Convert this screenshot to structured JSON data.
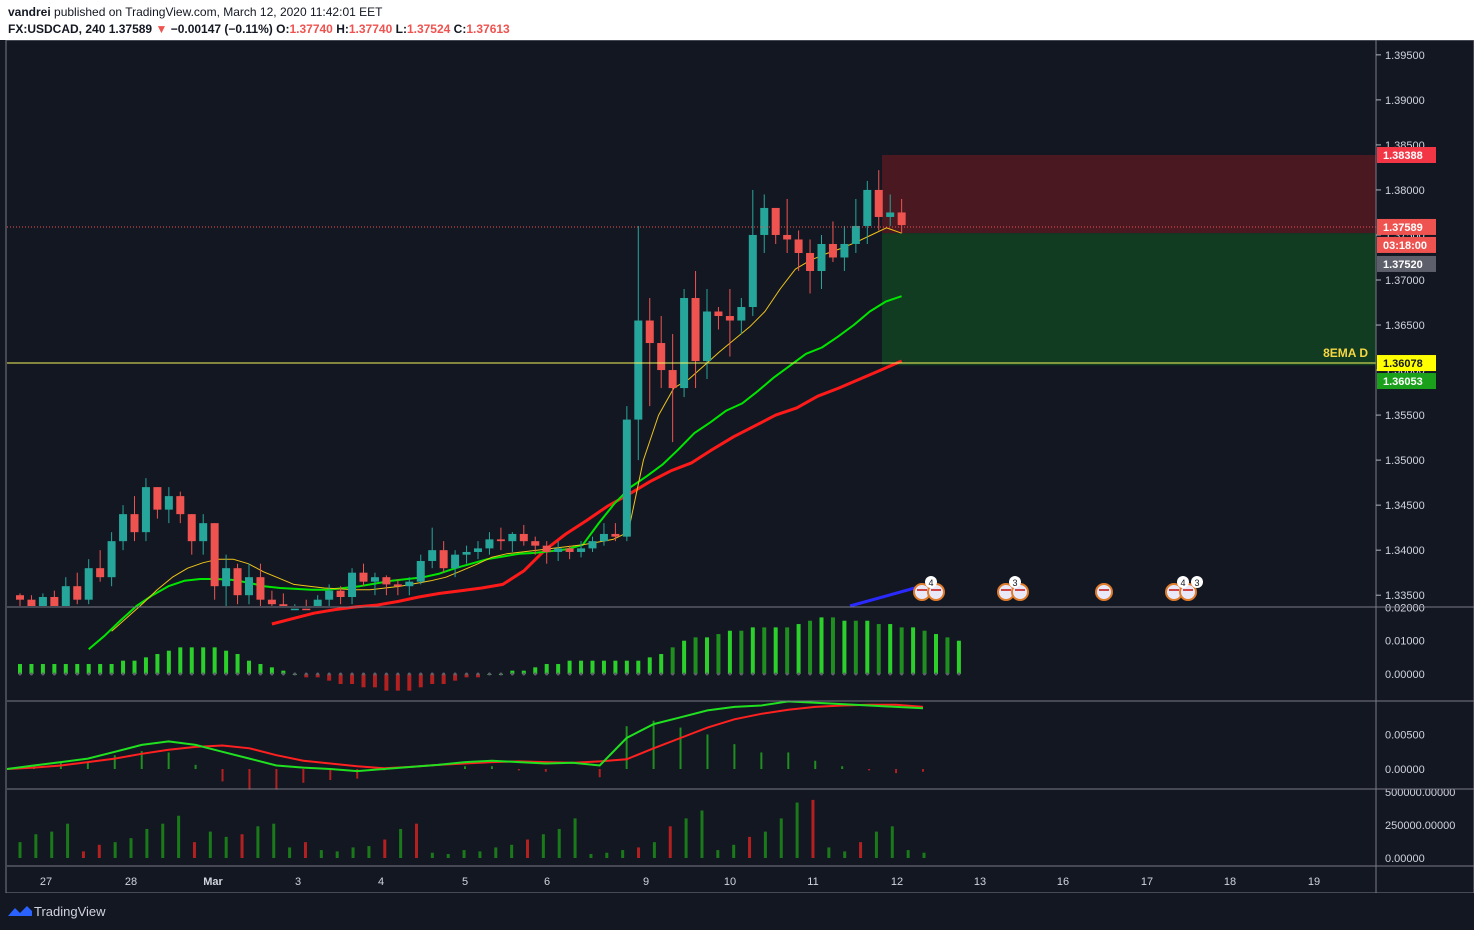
{
  "header": {
    "author": "vandrei",
    "published_text": "published on TradingView.com, March 12, 2020 11:42:01 EET",
    "symbol": "FX:USDCAD",
    "interval": "240",
    "last": "1.37589",
    "change": "−0.00147 (−0.11%)",
    "o_label": "O:",
    "o": "1.37740",
    "h_label": "H:",
    "h": "1.37740",
    "l_label": "L:",
    "l": "1.37524",
    "c_label": "C:",
    "c": "1.37613"
  },
  "colors": {
    "bg": "#131722",
    "up": "#26a69a",
    "down": "#ef5350",
    "ema_fast": "#f0c419",
    "ema_mid": "#00e600",
    "ema_slow": "#ff1a1a",
    "blue_line": "#2a2aff",
    "stop_zone": "#4a1820",
    "target_zone": "#123c22"
  },
  "price_axis": {
    "ticks": [
      "1.39500",
      "1.39000",
      "1.38500",
      "1.38000",
      "1.37500",
      "1.37000",
      "1.36500",
      "1.36000",
      "1.35500",
      "1.35000",
      "1.34500",
      "1.34000",
      "1.33500"
    ],
    "ylim": [
      1.3338,
      1.39665
    ]
  },
  "price_labels": {
    "stop": "1.38388",
    "last": "1.37589",
    "countdown": "03:18:00",
    "entry": "1.37520",
    "ema_daily": "1.36078",
    "target": "1.36053"
  },
  "annotation": "8EMA D",
  "event_badges": [
    "4",
    "3",
    "4",
    "3"
  ],
  "osc1": {
    "ticks": [
      "0.02000",
      "0.01000",
      "0.00000"
    ]
  },
  "osc2": {
    "ticks": [
      "0.00500",
      "0.00000"
    ]
  },
  "volume": {
    "ticks": [
      "500000.00000",
      "250000.00000",
      "0.00000"
    ]
  },
  "time_axis": [
    "27",
    "28",
    "Mar",
    "3",
    "4",
    "5",
    "6",
    "9",
    "10",
    "11",
    "12",
    "13",
    "16",
    "17",
    "18",
    "19"
  ],
  "footer": {
    "brand": "TradingView"
  },
  "chart_data": {
    "type": "candlestick",
    "symbol": "FX:USDCAD",
    "interval": "240",
    "ylim": [
      1.3338,
      1.39665
    ],
    "trade_setup": {
      "stop": 1.38388,
      "entry": 1.3752,
      "target": 1.36053,
      "ema_daily": 1.36078
    },
    "candles": [
      [
        1.335,
        1.3352,
        1.3335,
        1.3345
      ],
      [
        1.3345,
        1.335,
        1.3334,
        1.3338
      ],
      [
        1.3338,
        1.3352,
        1.3334,
        1.3348
      ],
      [
        1.3348,
        1.3355,
        1.333,
        1.3338
      ],
      [
        1.3338,
        1.337,
        1.3332,
        1.336
      ],
      [
        1.336,
        1.3375,
        1.334,
        1.3345
      ],
      [
        1.3345,
        1.339,
        1.334,
        1.338
      ],
      [
        1.338,
        1.34,
        1.3365,
        1.337
      ],
      [
        1.337,
        1.342,
        1.336,
        1.341
      ],
      [
        1.341,
        1.345,
        1.34,
        1.344
      ],
      [
        1.344,
        1.346,
        1.341,
        1.342
      ],
      [
        1.342,
        1.348,
        1.341,
        1.347
      ],
      [
        1.347,
        1.347,
        1.3435,
        1.3445
      ],
      [
        1.3445,
        1.347,
        1.343,
        1.346
      ],
      [
        1.346,
        1.3465,
        1.343,
        1.344
      ],
      [
        1.344,
        1.344,
        1.3395,
        1.341
      ],
      [
        1.341,
        1.344,
        1.3395,
        1.343
      ],
      [
        1.343,
        1.343,
        1.3345,
        1.336
      ],
      [
        1.336,
        1.3395,
        1.332,
        1.338
      ],
      [
        1.338,
        1.3385,
        1.334,
        1.335
      ],
      [
        1.335,
        1.3385,
        1.334,
        1.337
      ],
      [
        1.337,
        1.3385,
        1.333,
        1.3345
      ],
      [
        1.3345,
        1.3355,
        1.333,
        1.334
      ],
      [
        1.334,
        1.3352,
        1.3325,
        1.333
      ],
      [
        1.333,
        1.334,
        1.332,
        1.3335
      ],
      [
        1.3335,
        1.3345,
        1.3315,
        1.3325
      ],
      [
        1.3325,
        1.335,
        1.332,
        1.3345
      ],
      [
        1.3345,
        1.3362,
        1.333,
        1.3355
      ],
      [
        1.3355,
        1.336,
        1.334,
        1.3348
      ],
      [
        1.3348,
        1.338,
        1.334,
        1.3375
      ],
      [
        1.3375,
        1.3385,
        1.336,
        1.3365
      ],
      [
        1.3365,
        1.3375,
        1.335,
        1.337
      ],
      [
        1.337,
        1.3372,
        1.335,
        1.3362
      ],
      [
        1.3362,
        1.3368,
        1.335,
        1.336
      ],
      [
        1.336,
        1.337,
        1.335,
        1.3365
      ],
      [
        1.3365,
        1.3395,
        1.3362,
        1.3388
      ],
      [
        1.3388,
        1.3425,
        1.338,
        1.34
      ],
      [
        1.34,
        1.341,
        1.3375,
        1.338
      ],
      [
        1.338,
        1.34,
        1.337,
        1.3395
      ],
      [
        1.3395,
        1.3405,
        1.3385,
        1.3398
      ],
      [
        1.3398,
        1.341,
        1.339,
        1.3402
      ],
      [
        1.3402,
        1.342,
        1.3395,
        1.3412
      ],
      [
        1.3412,
        1.3425,
        1.34,
        1.341
      ],
      [
        1.341,
        1.342,
        1.3398,
        1.3418
      ],
      [
        1.3418,
        1.3428,
        1.3405,
        1.341
      ],
      [
        1.341,
        1.3415,
        1.3395,
        1.3405
      ],
      [
        1.3405,
        1.341,
        1.3385,
        1.3398
      ],
      [
        1.3398,
        1.341,
        1.3388,
        1.3402
      ],
      [
        1.3402,
        1.3405,
        1.339,
        1.3398
      ],
      [
        1.3398,
        1.341,
        1.3392,
        1.3402
      ],
      [
        1.3402,
        1.3415,
        1.3398,
        1.341
      ],
      [
        1.341,
        1.343,
        1.3405,
        1.3418
      ],
      [
        1.3418,
        1.343,
        1.341,
        1.3415
      ],
      [
        1.3415,
        1.356,
        1.341,
        1.3545
      ],
      [
        1.3545,
        1.376,
        1.35,
        1.3655
      ],
      [
        1.3655,
        1.368,
        1.356,
        1.363
      ],
      [
        1.363,
        1.366,
        1.358,
        1.36
      ],
      [
        1.36,
        1.364,
        1.352,
        1.358
      ],
      [
        1.358,
        1.369,
        1.357,
        1.368
      ],
      [
        1.368,
        1.371,
        1.358,
        1.361
      ],
      [
        1.361,
        1.369,
        1.359,
        1.3665
      ],
      [
        1.3665,
        1.367,
        1.3645,
        1.366
      ],
      [
        1.366,
        1.369,
        1.3615,
        1.3655
      ],
      [
        1.3655,
        1.368,
        1.364,
        1.367
      ],
      [
        1.367,
        1.38,
        1.366,
        1.375
      ],
      [
        1.375,
        1.3795,
        1.373,
        1.378
      ],
      [
        1.378,
        1.378,
        1.374,
        1.375
      ],
      [
        1.375,
        1.379,
        1.373,
        1.3745
      ],
      [
        1.3745,
        1.3755,
        1.371,
        1.373
      ],
      [
        1.373,
        1.3745,
        1.3685,
        1.371
      ],
      [
        1.371,
        1.375,
        1.369,
        1.374
      ],
      [
        1.374,
        1.3765,
        1.372,
        1.3725
      ],
      [
        1.3725,
        1.376,
        1.371,
        1.374
      ],
      [
        1.374,
        1.379,
        1.373,
        1.376
      ],
      [
        1.376,
        1.381,
        1.374,
        1.38
      ],
      [
        1.38,
        1.3822,
        1.3755,
        1.377
      ],
      [
        1.377,
        1.3795,
        1.376,
        1.3775
      ],
      [
        1.3775,
        1.379,
        1.3752,
        1.3761
      ]
    ],
    "ema_fast": [
      1.331,
      1.3325,
      1.334,
      1.3356,
      1.337,
      1.338,
      1.3386,
      1.339,
      1.339,
      1.3385,
      1.3376,
      1.3369,
      1.3362,
      1.336,
      1.3358,
      1.3357,
      1.3356,
      1.3356,
      1.3358,
      1.336,
      1.3363,
      1.3366,
      1.337,
      1.3377,
      1.3384,
      1.3392,
      1.3396,
      1.3398,
      1.34,
      1.3402,
      1.3404,
      1.3406,
      1.3409,
      1.3412,
      1.342,
      1.35,
      1.355,
      1.358,
      1.359,
      1.3605,
      1.362,
      1.3634,
      1.3648,
      1.3665,
      1.369,
      1.3712,
      1.3722,
      1.3729,
      1.3735,
      1.3742,
      1.375,
      1.3758,
      1.3752
    ],
    "ema_mid": [
      1.329,
      1.3305,
      1.3322,
      1.3338,
      1.335,
      1.336,
      1.3366,
      1.3368,
      1.3368,
      1.3367,
      1.3364,
      1.336,
      1.3358,
      1.3357,
      1.3356,
      1.3356,
      1.3358,
      1.336,
      1.3363,
      1.3366,
      1.3368,
      1.337,
      1.3374,
      1.338,
      1.3385,
      1.339,
      1.3393,
      1.3396,
      1.3397,
      1.3399,
      1.3401,
      1.3406,
      1.343,
      1.3452,
      1.347,
      1.3482,
      1.3495,
      1.3512,
      1.353,
      1.3542,
      1.3555,
      1.3563,
      1.3577,
      1.3592,
      1.3605,
      1.3618,
      1.3625,
      1.3637,
      1.365,
      1.3665,
      1.3676,
      1.3682
    ],
    "ema_slow": [
      1.3318,
      1.3324,
      1.333,
      1.3334,
      1.3337,
      1.3339,
      1.3343,
      1.3348,
      1.3352,
      1.3355,
      1.3358,
      1.3362,
      1.3377,
      1.34,
      1.3418,
      1.3433,
      1.3449,
      1.3462,
      1.3476,
      1.3488,
      1.3497,
      1.3512,
      1.3526,
      1.3538,
      1.355,
      1.3558,
      1.3571,
      1.358,
      1.359,
      1.36,
      1.361
    ],
    "oscillator_histogram": [
      0.003,
      0.003,
      0.003,
      0.003,
      0.003,
      0.003,
      0.003,
      0.003,
      0.003,
      0.004,
      0.004,
      0.005,
      0.006,
      0.007,
      0.008,
      0.008,
      0.008,
      0.008,
      0.007,
      0.006,
      0.004,
      0.003,
      0.002,
      0.001,
      0,
      -0.001,
      -0.001,
      -0.002,
      -0.003,
      -0.003,
      -0.004,
      -0.004,
      -0.005,
      -0.005,
      -0.005,
      -0.004,
      -0.003,
      -0.003,
      -0.002,
      -0.001,
      -0.001,
      0,
      0,
      0.001,
      0.001,
      0.002,
      0.003,
      0.003,
      0.004,
      0.004,
      0.004,
      0.004,
      0.004,
      0.004,
      0.004,
      0.005,
      0.006,
      0.008,
      0.01,
      0.011,
      0.011,
      0.012,
      0.013,
      0.013,
      0.014,
      0.014,
      0.014,
      0.014,
      0.015,
      0.016,
      0.017,
      0.017,
      0.016,
      0.016,
      0.016,
      0.015,
      0.015,
      0.014,
      0.014,
      0.013,
      0.012,
      0.011,
      0.01
    ],
    "macd_line": [
      0,
      0.0005,
      0.001,
      0.0015,
      0.0025,
      0.0035,
      0.004,
      0.0035,
      0.0025,
      0.0015,
      0.0005,
      0.0002,
      0,
      -0.0003,
      0,
      0.0003,
      0.0006,
      0.001,
      0.0012,
      0.001,
      0.0008,
      0.0009,
      0.0005,
      0.0045,
      0.0065,
      0.0075,
      0.0085,
      0.009,
      0.0092,
      0.0098,
      0.0096,
      0.0094,
      0.0092,
      0.009,
      0.0088
    ],
    "signal_line": [
      0,
      0.0002,
      0.0005,
      0.001,
      0.0015,
      0.0022,
      0.0028,
      0.0032,
      0.0034,
      0.003,
      0.002,
      0.0012,
      0.0008,
      0.0004,
      0.0001,
      0.0003,
      0.0006,
      0.0008,
      0.001,
      0.0011,
      0.001,
      0.0009,
      0.0011,
      0.0014,
      0.003,
      0.0045,
      0.006,
      0.0072,
      0.008,
      0.0086,
      0.009,
      0.0092,
      0.0093,
      0.0093,
      0.009
    ],
    "volume_bars": [
      120000,
      180000,
      200000,
      260000,
      50000,
      100000,
      120000,
      150000,
      220000,
      260000,
      320000,
      120000,
      200000,
      160000,
      180000,
      240000,
      260000,
      80000,
      120000,
      60000,
      50000,
      80000,
      90000,
      140000,
      220000,
      260000,
      40000,
      30000,
      60000,
      50000,
      80000,
      100000,
      140000,
      180000,
      220000,
      300000,
      30000,
      40000,
      60000,
      80000,
      120000,
      240000,
      300000,
      360000,
      60000,
      100000,
      160000,
      200000,
      300000,
      420000,
      440000,
      80000,
      50000,
      120000,
      200000,
      240000,
      60000,
      40000
    ]
  }
}
